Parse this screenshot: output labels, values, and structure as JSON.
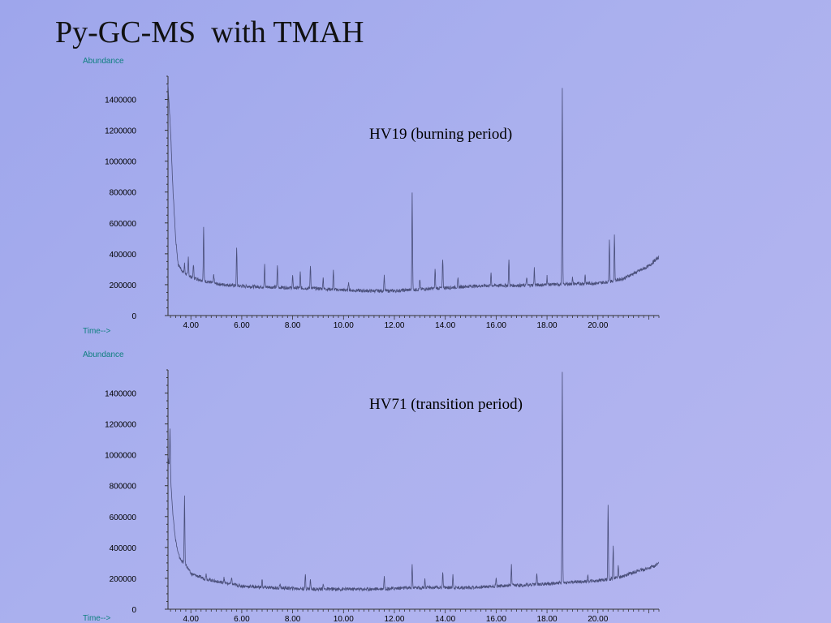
{
  "slide": {
    "title": "Py-GC-MS  with TMAH"
  },
  "chart_data": [
    {
      "type": "line",
      "annotation": "HV19 (burning period)",
      "xlabel": "Time-->",
      "ylabel": "Abundance",
      "x_ticks": [
        "4.00",
        "6.00",
        "8.00",
        "10.00",
        "12.00",
        "14.00",
        "16.00",
        "18.00",
        "20.00"
      ],
      "y_ticks": [
        "0",
        "200000",
        "400000",
        "600000",
        "800000",
        "1000000",
        "1200000",
        "1400000"
      ],
      "xlim": [
        3.1,
        22.4
      ],
      "ylim": [
        0,
        1550000
      ],
      "grid": false,
      "line_color": "#4a4f7a",
      "baseline": [
        [
          3.1,
          1500000
        ],
        [
          3.2,
          1200000
        ],
        [
          3.3,
          800000
        ],
        [
          3.4,
          500000
        ],
        [
          3.5,
          330000
        ],
        [
          3.7,
          280000
        ],
        [
          4.0,
          250000
        ],
        [
          4.5,
          225000
        ],
        [
          5.0,
          205000
        ],
        [
          6.0,
          190000
        ],
        [
          7.0,
          185000
        ],
        [
          8.0,
          180000
        ],
        [
          9.0,
          175000
        ],
        [
          10.0,
          165000
        ],
        [
          11.0,
          160000
        ],
        [
          12.0,
          160000
        ],
        [
          13.0,
          170000
        ],
        [
          14.0,
          180000
        ],
        [
          15.0,
          190000
        ],
        [
          16.0,
          195000
        ],
        [
          17.0,
          195000
        ],
        [
          18.0,
          200000
        ],
        [
          19.0,
          205000
        ],
        [
          20.0,
          210000
        ],
        [
          20.5,
          220000
        ],
        [
          21.0,
          240000
        ],
        [
          21.5,
          280000
        ],
        [
          22.0,
          320000
        ],
        [
          22.4,
          380000
        ]
      ],
      "peaks": [
        [
          3.75,
          60000
        ],
        [
          3.9,
          120000
        ],
        [
          4.1,
          90000
        ],
        [
          4.5,
          350000
        ],
        [
          4.9,
          60000
        ],
        [
          5.8,
          240000
        ],
        [
          6.9,
          140000
        ],
        [
          7.4,
          145000
        ],
        [
          8.0,
          80000
        ],
        [
          8.3,
          100000
        ],
        [
          8.7,
          150000
        ],
        [
          9.2,
          80000
        ],
        [
          9.6,
          120000
        ],
        [
          10.2,
          60000
        ],
        [
          11.6,
          100000
        ],
        [
          12.7,
          630000
        ],
        [
          13.0,
          60000
        ],
        [
          13.6,
          120000
        ],
        [
          13.9,
          190000
        ],
        [
          14.5,
          50000
        ],
        [
          15.8,
          85000
        ],
        [
          16.5,
          165000
        ],
        [
          17.2,
          55000
        ],
        [
          17.5,
          110000
        ],
        [
          18.0,
          55000
        ],
        [
          18.6,
          1265000
        ],
        [
          19.0,
          40000
        ],
        [
          19.5,
          60000
        ],
        [
          20.45,
          280000
        ],
        [
          20.65,
          290000
        ]
      ]
    },
    {
      "type": "line",
      "annotation": "HV71 (transition period)",
      "xlabel": "Time-->",
      "ylabel": "Abundance",
      "x_ticks": [
        "4.00",
        "6.00",
        "8.00",
        "10.00",
        "12.00",
        "14.00",
        "16.00",
        "18.00",
        "20.00"
      ],
      "y_ticks": [
        "0",
        "200000",
        "400000",
        "600000",
        "800000",
        "1000000",
        "1200000",
        "1400000"
      ],
      "xlim": [
        3.1,
        22.4
      ],
      "ylim": [
        0,
        1550000
      ],
      "grid": false,
      "line_color": "#4a4f7a",
      "baseline": [
        [
          3.1,
          1000000
        ],
        [
          3.2,
          850000
        ],
        [
          3.3,
          600000
        ],
        [
          3.4,
          450000
        ],
        [
          3.5,
          360000
        ],
        [
          3.6,
          320000
        ],
        [
          3.8,
          290000
        ],
        [
          4.0,
          230000
        ],
        [
          4.5,
          200000
        ],
        [
          5.0,
          180000
        ],
        [
          6.0,
          150000
        ],
        [
          7.0,
          140000
        ],
        [
          8.0,
          135000
        ],
        [
          9.0,
          130000
        ],
        [
          10.0,
          130000
        ],
        [
          11.0,
          130000
        ],
        [
          12.0,
          135000
        ],
        [
          13.0,
          140000
        ],
        [
          14.0,
          140000
        ],
        [
          15.0,
          140000
        ],
        [
          16.0,
          150000
        ],
        [
          17.0,
          155000
        ],
        [
          18.0,
          165000
        ],
        [
          19.0,
          175000
        ],
        [
          20.0,
          185000
        ],
        [
          20.5,
          195000
        ],
        [
          21.0,
          215000
        ],
        [
          21.5,
          245000
        ],
        [
          22.0,
          265000
        ],
        [
          22.4,
          295000
        ]
      ],
      "peaks": [
        [
          3.18,
          300000
        ],
        [
          3.75,
          440000
        ],
        [
          4.6,
          40000
        ],
        [
          5.3,
          40000
        ],
        [
          5.6,
          50000
        ],
        [
          6.8,
          50000
        ],
        [
          7.5,
          30000
        ],
        [
          8.5,
          100000
        ],
        [
          8.7,
          60000
        ],
        [
          9.2,
          40000
        ],
        [
          11.6,
          80000
        ],
        [
          12.7,
          160000
        ],
        [
          13.2,
          55000
        ],
        [
          13.9,
          100000
        ],
        [
          14.3,
          90000
        ],
        [
          16.0,
          50000
        ],
        [
          16.6,
          130000
        ],
        [
          17.6,
          70000
        ],
        [
          18.6,
          1370000
        ],
        [
          19.6,
          40000
        ],
        [
          20.4,
          490000
        ],
        [
          20.6,
          210000
        ],
        [
          20.8,
          80000
        ]
      ]
    }
  ]
}
